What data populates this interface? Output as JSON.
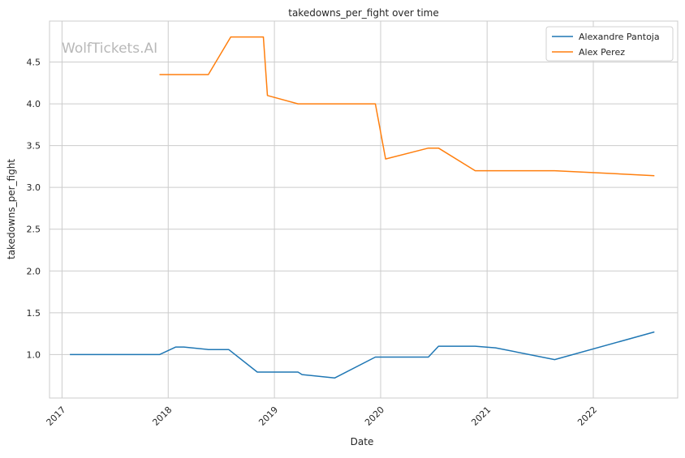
{
  "watermark": "WolfTickets.AI",
  "chart_data": {
    "type": "line",
    "title": "takedowns_per_fight over time",
    "xlabel": "Date",
    "ylabel": "takedowns_per_fight",
    "x_tick_labels": [
      "2017",
      "2018",
      "2019",
      "2020",
      "2021",
      "2022"
    ],
    "y_tick_labels": [
      "1.0",
      "1.5",
      "2.0",
      "2.5",
      "3.0",
      "3.5",
      "4.0",
      "4.5"
    ],
    "y_ticks": [
      1.0,
      1.5,
      2.0,
      2.5,
      3.0,
      3.5,
      4.0,
      4.5
    ],
    "xlim": [
      "2016-11-19",
      "2022-10-18"
    ],
    "ylim": [
      0.48,
      4.99
    ],
    "grid": true,
    "legend_position": "top-right",
    "series": [
      {
        "name": "Alexandre Pantoja",
        "color": "#1f77b4",
        "points": [
          [
            "2017-01-28",
            1.0
          ],
          [
            "2017-12-02",
            1.0
          ],
          [
            "2018-01-27",
            1.09
          ],
          [
            "2018-02-24",
            1.09
          ],
          [
            "2018-05-19",
            1.06
          ],
          [
            "2018-07-28",
            1.06
          ],
          [
            "2018-11-03",
            0.79
          ],
          [
            "2019-03-23",
            0.79
          ],
          [
            "2019-04-06",
            0.76
          ],
          [
            "2019-07-27",
            0.72
          ],
          [
            "2019-12-14",
            0.97
          ],
          [
            "2020-06-13",
            0.97
          ],
          [
            "2020-07-18",
            1.1
          ],
          [
            "2020-11-21",
            1.1
          ],
          [
            "2021-01-30",
            1.08
          ],
          [
            "2021-08-21",
            0.94
          ],
          [
            "2022-07-30",
            1.27
          ]
        ]
      },
      {
        "name": "Alex Perez",
        "color": "#ff7f0e",
        "points": [
          [
            "2017-12-02",
            4.35
          ],
          [
            "2018-05-19",
            4.35
          ],
          [
            "2018-08-04",
            4.8
          ],
          [
            "2018-11-24",
            4.8
          ],
          [
            "2018-12-08",
            4.1
          ],
          [
            "2019-03-23",
            4.0
          ],
          [
            "2019-12-14",
            4.0
          ],
          [
            "2020-01-18",
            3.34
          ],
          [
            "2020-06-13",
            3.47
          ],
          [
            "2020-07-18",
            3.47
          ],
          [
            "2020-11-21",
            3.2
          ],
          [
            "2021-08-21",
            3.2
          ],
          [
            "2022-07-30",
            3.14
          ]
        ]
      }
    ]
  }
}
